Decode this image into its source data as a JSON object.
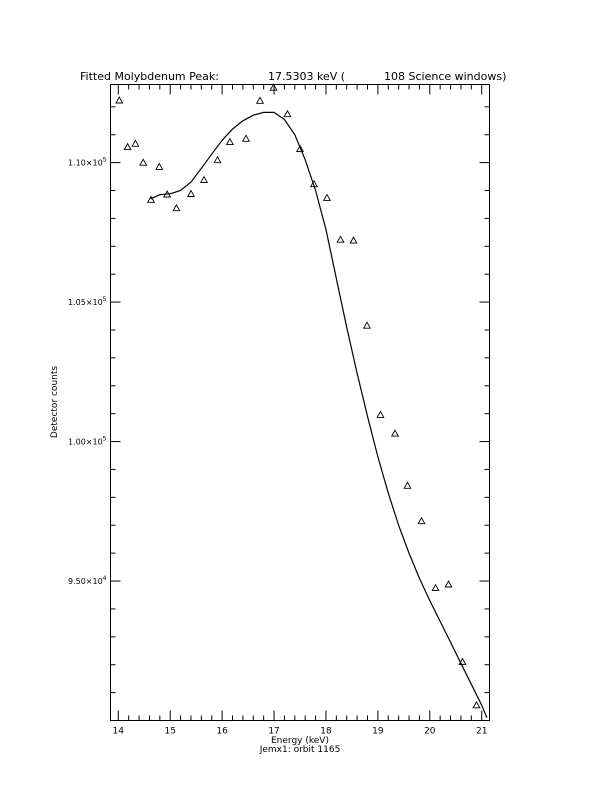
{
  "chart_data": {
    "type": "scatter",
    "title_parts": [
      "Fitted Molybdenum Peak:",
      "17.5303 keV (",
      "108 Science windows)"
    ],
    "xlabel": "Energy (keV)",
    "ylabel": "Detector counts",
    "footer": "Jemx1: orbit 1165",
    "xlim": [
      13.85,
      21.15
    ],
    "ylim": [
      90000,
      112800
    ],
    "xticks": [
      {
        "v": 14,
        "label": "14"
      },
      {
        "v": 15,
        "label": "15"
      },
      {
        "v": 16,
        "label": "16"
      },
      {
        "v": 17,
        "label": "17"
      },
      {
        "v": 18,
        "label": "18"
      },
      {
        "v": 19,
        "label": "19"
      },
      {
        "v": 20,
        "label": "20"
      },
      {
        "v": 21,
        "label": "21"
      }
    ],
    "yticks": [
      {
        "v": 95000,
        "mant": "9.50×10",
        "exp": "4"
      },
      {
        "v": 100000,
        "mant": "1.00×10",
        "exp": "5"
      },
      {
        "v": 105000,
        "mant": "1.05×10",
        "exp": "5"
      },
      {
        "v": 110000,
        "mant": "1.10×10",
        "exp": "5"
      }
    ],
    "series": [
      {
        "marker": "triangle",
        "x": [
          14.02,
          14.18,
          14.33,
          14.48,
          14.63,
          14.79,
          14.94,
          15.12,
          15.4,
          15.65,
          15.91,
          16.15,
          16.46,
          16.73,
          16.99,
          17.26,
          17.5,
          17.77,
          18.02,
          18.28,
          18.53,
          18.79,
          19.05,
          19.33,
          19.57,
          19.84,
          20.11,
          20.36,
          20.63,
          20.9
        ],
        "y": [
          112230,
          110560,
          110680,
          110000,
          108670,
          109850,
          108860,
          108370,
          108880,
          109380,
          110090,
          110740,
          110860,
          112220,
          112690,
          111740,
          110490,
          109230,
          108740,
          107240,
          107210,
          104160,
          100960,
          100290,
          98420,
          97150,
          94750,
          94880,
          92100,
          90550
        ]
      },
      {
        "marker": "line",
        "x": [
          14.62,
          14.8,
          15.0,
          15.2,
          15.4,
          15.6,
          15.8,
          16.0,
          16.2,
          16.4,
          16.6,
          16.8,
          17.0,
          17.2,
          17.4,
          17.6,
          17.8,
          18.0,
          18.2,
          18.4,
          18.6,
          18.8,
          19.0,
          19.2,
          19.4,
          19.6,
          19.8,
          20.0,
          20.2,
          20.4,
          20.6,
          20.8,
          21.0,
          21.1
        ],
        "y": [
          108700,
          108850,
          108880,
          109000,
          109300,
          109800,
          110300,
          110800,
          111200,
          111500,
          111700,
          111800,
          111800,
          111550,
          111000,
          110100,
          109000,
          107600,
          105850,
          104100,
          102450,
          100900,
          99450,
          98150,
          97000,
          96000,
          95100,
          94300,
          93550,
          92800,
          92050,
          91300,
          90550,
          90100
        ]
      }
    ]
  }
}
